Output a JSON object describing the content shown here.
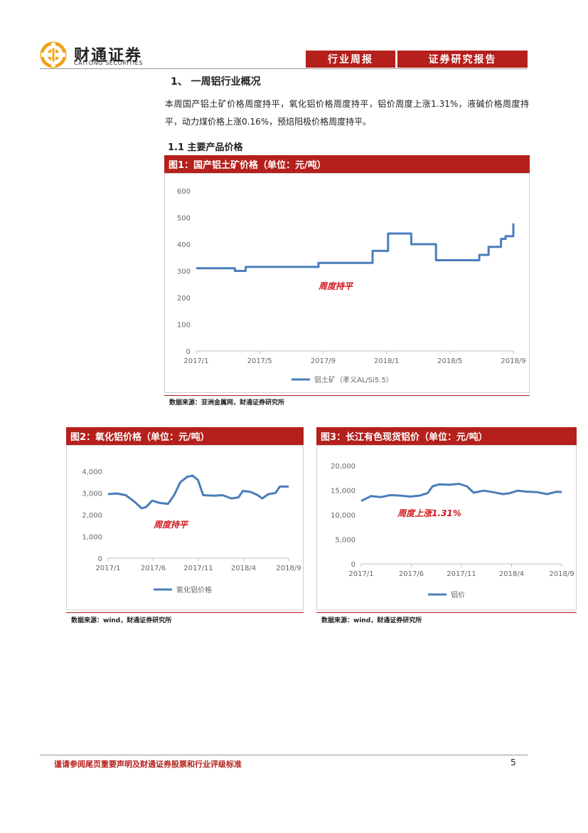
{
  "header": {
    "logo_cn": "财通证券",
    "logo_en": "CAITONG SECURITIES",
    "tab1": "行业周报",
    "tab2": "证券研究报告"
  },
  "section": {
    "title": "1、 一周铝行业概况",
    "paragraph": "本周国产铝土矿价格周度持平，氧化铝价格周度持平，铝价周度上涨1.31%，液碱价格周度持平，动力煤价格上涨0.16%，预焙阳极价格周度持平。",
    "subtitle": "1.1  主要产品价格"
  },
  "colors": {
    "accent": "#b5201c",
    "line": "#4a7ebb",
    "annotation": "#d0161b"
  },
  "chart_data": [
    {
      "type": "line",
      "title": "图1：国产铝土矿价格（单位：元/吨）",
      "source": "数据来源：亚洲金属网，财通证券研究所",
      "annotation": "周度持平",
      "x_ticks": [
        "2017/1",
        "2017/5",
        "2017/9",
        "2018/1",
        "2018/5",
        "2018/9"
      ],
      "y_ticks": [
        "0",
        "100",
        "200",
        "300",
        "400",
        "500",
        "600"
      ],
      "ylim": [
        0,
        600
      ],
      "x_range": [
        0,
        20.5
      ],
      "step": true,
      "series": [
        {
          "name": "铝土矿（孝义AL/Si5.5）",
          "points": [
            [
              0,
              310
            ],
            [
              2,
              310
            ],
            [
              2.5,
              300
            ],
            [
              3.1,
              300
            ],
            [
              3.2,
              315
            ],
            [
              7.8,
              315
            ],
            [
              7.9,
              330
            ],
            [
              11.3,
              330
            ],
            [
              11.4,
              375
            ],
            [
              12.3,
              375
            ],
            [
              12.4,
              440
            ],
            [
              13.8,
              440
            ],
            [
              13.9,
              400
            ],
            [
              15.4,
              400
            ],
            [
              15.5,
              340
            ],
            [
              18.2,
              340
            ],
            [
              18.3,
              360
            ],
            [
              18.8,
              360
            ],
            [
              18.9,
              390
            ],
            [
              19.6,
              390
            ],
            [
              19.7,
              420
            ],
            [
              19.9,
              420
            ],
            [
              20.0,
              430
            ],
            [
              20.4,
              430
            ],
            [
              20.5,
              470
            ],
            [
              20.5,
              478
            ]
          ]
        }
      ]
    },
    {
      "type": "line",
      "title": "图2：氧化铝价格（单位：元/吨）",
      "source": "数据来源：wind，财通证券研究所",
      "annotation": "周度持平",
      "x_ticks": [
        "2017/1",
        "2017/6",
        "2017/11",
        "2018/4",
        "2018/9"
      ],
      "y_ticks": [
        "0",
        "1,000",
        "2,000",
        "3,000",
        "4,000"
      ],
      "ylim": [
        0,
        4000
      ],
      "x_range": [
        0,
        20.5
      ],
      "step": false,
      "series": [
        {
          "name": "氧化铝价格",
          "points": [
            [
              0,
              2950
            ],
            [
              1,
              2980
            ],
            [
              2,
              2900
            ],
            [
              3,
              2600
            ],
            [
              3.8,
              2300
            ],
            [
              4.3,
              2350
            ],
            [
              5,
              2650
            ],
            [
              5.8,
              2550
            ],
            [
              6.8,
              2500
            ],
            [
              7.5,
              2900
            ],
            [
              8.2,
              3500
            ],
            [
              9,
              3750
            ],
            [
              9.6,
              3800
            ],
            [
              10.2,
              3600
            ],
            [
              10.8,
              2900
            ],
            [
              12,
              2880
            ],
            [
              13,
              2900
            ],
            [
              14,
              2750
            ],
            [
              14.8,
              2800
            ],
            [
              15.3,
              3100
            ],
            [
              16.2,
              3050
            ],
            [
              17,
              2900
            ],
            [
              17.5,
              2750
            ],
            [
              18.2,
              2950
            ],
            [
              19,
              3000
            ],
            [
              19.5,
              3300
            ],
            [
              20.5,
              3300
            ]
          ]
        }
      ]
    },
    {
      "type": "line",
      "title": "图3：长江有色现货铝价（单位：元/吨）",
      "source": "数据来源：wind，财通证券研究所",
      "annotation": "周度上涨1.31%",
      "x_ticks": [
        "2017/1",
        "2017/6",
        "2017/11",
        "2018/4",
        "2018/9"
      ],
      "y_ticks": [
        "0",
        "5,000",
        "10,000",
        "15,000",
        "20,000"
      ],
      "ylim": [
        0,
        20000
      ],
      "x_range": [
        0,
        20.5
      ],
      "step": false,
      "series": [
        {
          "name": "铝价",
          "points": [
            [
              0,
              12800
            ],
            [
              0.5,
              13300
            ],
            [
              1,
              13800
            ],
            [
              2,
              13600
            ],
            [
              3,
              14000
            ],
            [
              4,
              13900
            ],
            [
              5,
              13700
            ],
            [
              6,
              13900
            ],
            [
              6.8,
              14400
            ],
            [
              7.3,
              15800
            ],
            [
              8,
              16200
            ],
            [
              9,
              16100
            ],
            [
              10,
              16300
            ],
            [
              10.8,
              15800
            ],
            [
              11.5,
              14500
            ],
            [
              12.5,
              14900
            ],
            [
              13.5,
              14600
            ],
            [
              14.5,
              14200
            ],
            [
              15.2,
              14400
            ],
            [
              16,
              14900
            ],
            [
              17,
              14700
            ],
            [
              18,
              14600
            ],
            [
              19,
              14200
            ],
            [
              20,
              14700
            ],
            [
              20.5,
              14600
            ]
          ]
        }
      ]
    }
  ],
  "footer": {
    "disclaimer": "谨请参阅尾页重要声明及财通证券股票和行业评级标准",
    "page": "5"
  }
}
